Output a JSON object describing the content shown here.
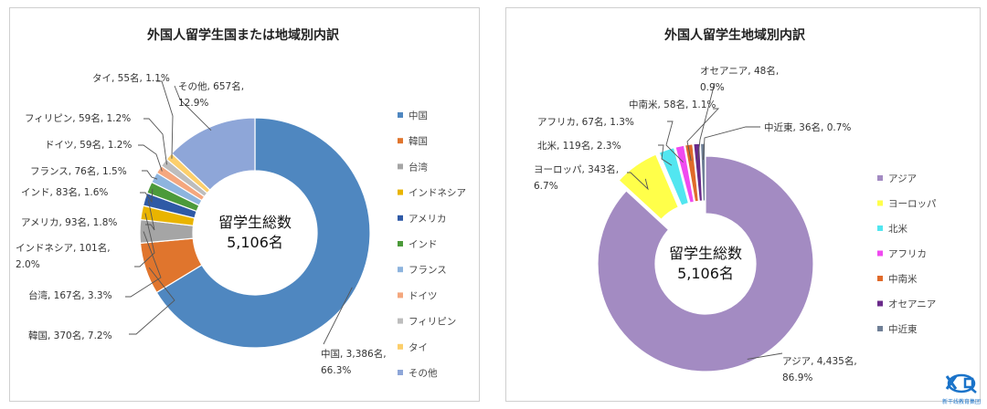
{
  "chart_data": [
    {
      "type": "pie",
      "variant": "donut",
      "title": "外国人留学生国または地域別内訳",
      "center_label": [
        "留学生総数",
        "5,106名"
      ],
      "categories": [
        "中国",
        "韓国",
        "台湾",
        "インドネシア",
        "アメリカ",
        "インド",
        "フランス",
        "ドイツ",
        "フィリピン",
        "タイ",
        "その他"
      ],
      "values": [
        3386,
        370,
        167,
        101,
        93,
        83,
        76,
        59,
        59,
        55,
        657
      ],
      "percents": [
        "66.3%",
        "7.2%",
        "3.3%",
        "2.0%",
        "1.8%",
        "1.6%",
        "1.5%",
        "1.2%",
        "1.2%",
        "1.1%",
        "12.9%"
      ],
      "data_labels": [
        [
          "中国, 3,386名,",
          "66.3%"
        ],
        [
          "韓国, 370名, 7.2%"
        ],
        [
          "台湾, 167名, 3.3%"
        ],
        [
          "インドネシア, 101名,",
          "2.0%"
        ],
        [
          "アメリカ, 93名, 1.8%"
        ],
        [
          "インド, 83名, 1.6%"
        ],
        [
          "フランス, 76名, 1.5%"
        ],
        [
          "ドイツ, 59名, 1.2%"
        ],
        [
          "フィリピン, 59名, 1.2%"
        ],
        [
          "タイ, 55名, 1.1%"
        ],
        [
          "その他, 657名,",
          "12.9%"
        ]
      ],
      "colors": [
        "#4f87c0",
        "#e0752d",
        "#a5a5a5",
        "#e9b400",
        "#2f5aa6",
        "#4c9a3a",
        "#8db4de",
        "#f4a77e",
        "#bdbdbd",
        "#fccf6b",
        "#8ea6d8"
      ],
      "legend_position": "right"
    },
    {
      "type": "pie",
      "variant": "donut",
      "title": "外国人留学生地域別内訳",
      "center_label": [
        "留学生総数",
        "5,106名"
      ],
      "categories": [
        "アジア",
        "ヨーロッパ",
        "北米",
        "アフリカ",
        "中南米",
        "オセアニア",
        "中近東"
      ],
      "values": [
        4435,
        343,
        119,
        67,
        58,
        48,
        36
      ],
      "percents": [
        "86.9%",
        "6.7%",
        "2.3%",
        "1.3%",
        "1.1%",
        "0.9%",
        "0.7%"
      ],
      "data_labels": [
        [
          "アジア, 4,435名,",
          "86.9%"
        ],
        [
          "ヨーロッパ, 343名,",
          "6.7%"
        ],
        [
          "北米, 119名, 2.3%"
        ],
        [
          "アフリカ, 67名, 1.3%"
        ],
        [
          "中南米, 58名, 1.1%"
        ],
        [
          "オセアニア, 48名,",
          "0.9%"
        ],
        [
          "中近東, 36名, 0.7%"
        ]
      ],
      "colors": [
        "#a38bc2",
        "#ffff4a",
        "#52e6f0",
        "#f04af0",
        "#e06a2a",
        "#6a2a8a",
        "#6f7f96"
      ],
      "legend_position": "right"
    }
  ],
  "logo": {
    "text": "新干线教育集团",
    "color": "#1a73c9"
  }
}
